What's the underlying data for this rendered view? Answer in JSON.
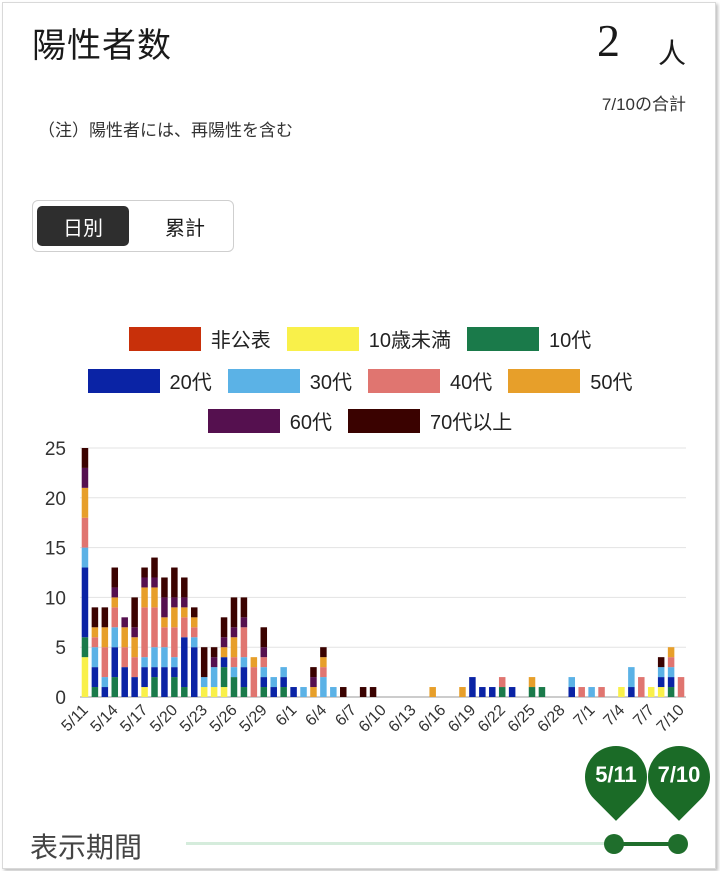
{
  "header": {
    "title": "陽性者数",
    "count": "2",
    "unit": "人",
    "date_note": "7/10の合計",
    "note": "（注）陽性者には、再陽性を含む"
  },
  "toggle": {
    "daily": "日別",
    "cumulative": "累計"
  },
  "legend": [
    {
      "label": "非公表",
      "color": "#c8300a"
    },
    {
      "label": "10歳未満",
      "color": "#f9f04a"
    },
    {
      "label": "10代",
      "color": "#1a7a4a"
    },
    {
      "label": "20代",
      "color": "#0a23a5"
    },
    {
      "label": "30代",
      "color": "#5bb2e6"
    },
    {
      "label": "40代",
      "color": "#e07570"
    },
    {
      "label": "50代",
      "color": "#e79f2a"
    },
    {
      "label": "60代",
      "color": "#55104f"
    },
    {
      "label": "70代以上",
      "color": "#3a0200"
    }
  ],
  "slider": {
    "label": "表示期間",
    "start": "5/11",
    "end": "7/10"
  },
  "chart_data": {
    "type": "bar",
    "stacked": true,
    "ylim": [
      0,
      25
    ],
    "yticks": [
      0,
      5,
      10,
      15,
      20,
      25
    ],
    "grid": true,
    "legend_position": "top",
    "categories": [
      "5/11",
      "5/12",
      "5/13",
      "5/14",
      "5/15",
      "5/16",
      "5/17",
      "5/18",
      "5/19",
      "5/20",
      "5/21",
      "5/22",
      "5/23",
      "5/24",
      "5/25",
      "5/26",
      "5/27",
      "5/28",
      "5/29",
      "5/30",
      "5/31",
      "6/1",
      "6/2",
      "6/3",
      "6/4",
      "6/5",
      "6/6",
      "6/7",
      "6/8",
      "6/9",
      "6/10",
      "6/11",
      "6/12",
      "6/13",
      "6/14",
      "6/15",
      "6/16",
      "6/17",
      "6/18",
      "6/19",
      "6/20",
      "6/21",
      "6/22",
      "6/23",
      "6/24",
      "6/25",
      "6/26",
      "6/27",
      "6/28",
      "6/29",
      "6/30",
      "7/1",
      "7/2",
      "7/3",
      "7/4",
      "7/5",
      "7/6",
      "7/7",
      "7/8",
      "7/9",
      "7/10"
    ],
    "xtick_labels": [
      "5/11",
      "5/14",
      "5/17",
      "5/20",
      "5/23",
      "5/26",
      "5/29",
      "6/1",
      "6/4",
      "6/7",
      "6/10",
      "6/13",
      "6/16",
      "6/19",
      "6/22",
      "6/25",
      "6/28",
      "7/1",
      "7/4",
      "7/7",
      "7/10"
    ],
    "series": [
      {
        "name": "非公表",
        "values": [
          0,
          0,
          0,
          0,
          0,
          0,
          0,
          0,
          0,
          0,
          0,
          0,
          0,
          0,
          0,
          0,
          0,
          0,
          0,
          0,
          0,
          0,
          0,
          0,
          0,
          0,
          0,
          0,
          0,
          0,
          0,
          0,
          0,
          0,
          0,
          0,
          0,
          0,
          0,
          0,
          0,
          0,
          0,
          0,
          0,
          0,
          0,
          0,
          0,
          0,
          0,
          0,
          0,
          0,
          0,
          0,
          0,
          0,
          0,
          0,
          0
        ]
      },
      {
        "name": "10歳未満",
        "values": [
          4,
          0,
          0,
          0,
          0,
          0,
          1,
          0,
          0,
          0,
          0,
          0,
          1,
          1,
          1,
          0,
          0,
          0,
          0,
          0,
          0,
          0,
          0,
          0,
          0,
          0,
          0,
          0,
          0,
          0,
          0,
          0,
          0,
          0,
          0,
          0,
          0,
          0,
          0,
          0,
          0,
          0,
          0,
          0,
          0,
          0,
          0,
          0,
          0,
          0,
          0,
          0,
          0,
          0,
          1,
          0,
          0,
          1,
          1,
          0,
          0
        ]
      },
      {
        "name": "10代",
        "values": [
          2,
          1,
          0,
          2,
          0,
          0,
          0,
          2,
          0,
          2,
          1,
          0,
          0,
          0,
          2,
          2,
          1,
          0,
          1,
          0,
          1,
          0,
          0,
          0,
          0,
          0,
          0,
          0,
          0,
          0,
          0,
          0,
          0,
          0,
          0,
          0,
          0,
          0,
          0,
          0,
          0,
          0,
          1,
          0,
          0,
          1,
          1,
          0,
          0,
          0,
          0,
          0,
          0,
          0,
          0,
          0,
          0,
          0,
          0,
          1,
          0
        ]
      },
      {
        "name": "20代",
        "values": [
          7,
          2,
          1,
          3,
          3,
          2,
          2,
          1,
          3,
          1,
          5,
          5,
          0,
          0,
          1,
          0,
          2,
          0,
          1,
          1,
          1,
          1,
          0,
          0,
          0,
          0,
          0,
          0,
          0,
          0,
          0,
          0,
          0,
          0,
          0,
          0,
          0,
          0,
          0,
          2,
          1,
          1,
          0,
          1,
          0,
          0,
          0,
          0,
          0,
          1,
          0,
          0,
          0,
          0,
          0,
          1,
          0,
          0,
          1,
          1,
          0
        ]
      },
      {
        "name": "30代",
        "values": [
          2,
          2,
          1,
          2,
          0,
          0,
          1,
          2,
          2,
          1,
          0,
          1,
          1,
          2,
          0,
          1,
          1,
          0,
          1,
          1,
          1,
          0,
          1,
          0,
          2,
          1,
          0,
          0,
          0,
          0,
          0,
          0,
          0,
          0,
          0,
          0,
          0,
          0,
          0,
          0,
          0,
          0,
          0,
          0,
          0,
          0,
          0,
          0,
          0,
          1,
          0,
          1,
          0,
          0,
          0,
          2,
          0,
          0,
          1,
          1,
          0
        ]
      },
      {
        "name": "40代",
        "values": [
          3,
          1,
          3,
          2,
          2,
          2,
          5,
          4,
          2,
          3,
          2,
          1,
          0,
          0,
          0,
          1,
          3,
          3,
          1,
          0,
          0,
          0,
          0,
          0,
          1,
          0,
          0,
          0,
          0,
          0,
          0,
          0,
          0,
          0,
          0,
          0,
          0,
          0,
          0,
          0,
          0,
          0,
          1,
          0,
          0,
          0,
          0,
          0,
          0,
          0,
          1,
          0,
          1,
          0,
          0,
          0,
          2,
          0,
          0,
          1,
          2
        ]
      },
      {
        "name": "50代",
        "values": [
          3,
          1,
          2,
          1,
          2,
          2,
          2,
          2,
          1,
          2,
          1,
          1,
          0,
          0,
          1,
          2,
          0,
          1,
          0,
          0,
          0,
          0,
          0,
          1,
          1,
          0,
          0,
          0,
          0,
          0,
          0,
          0,
          0,
          0,
          0,
          1,
          0,
          0,
          1,
          0,
          0,
          0,
          0,
          0,
          0,
          1,
          0,
          0,
          0,
          0,
          0,
          0,
          0,
          0,
          0,
          0,
          0,
          0,
          0,
          1,
          0
        ]
      },
      {
        "name": "60代",
        "values": [
          2,
          0,
          0,
          1,
          1,
          1,
          1,
          1,
          2,
          1,
          1,
          0,
          0,
          1,
          1,
          1,
          1,
          0,
          1,
          0,
          0,
          0,
          0,
          1,
          0,
          0,
          0,
          0,
          0,
          0,
          0,
          0,
          0,
          0,
          0,
          0,
          0,
          0,
          0,
          0,
          0,
          0,
          0,
          0,
          0,
          0,
          0,
          0,
          0,
          0,
          0,
          0,
          0,
          0,
          0,
          0,
          0,
          0,
          0,
          0,
          0
        ]
      },
      {
        "name": "70代以上",
        "values": [
          2,
          2,
          2,
          2,
          0,
          3,
          1,
          2,
          2,
          3,
          2,
          1,
          3,
          1,
          2,
          3,
          2,
          0,
          2,
          0,
          0,
          0,
          0,
          1,
          1,
          0,
          1,
          0,
          1,
          1,
          0,
          0,
          0,
          0,
          0,
          0,
          0,
          0,
          0,
          0,
          0,
          0,
          0,
          0,
          0,
          0,
          0,
          0,
          0,
          0,
          0,
          0,
          0,
          0,
          0,
          0,
          0,
          0,
          1,
          0,
          0
        ]
      }
    ]
  }
}
